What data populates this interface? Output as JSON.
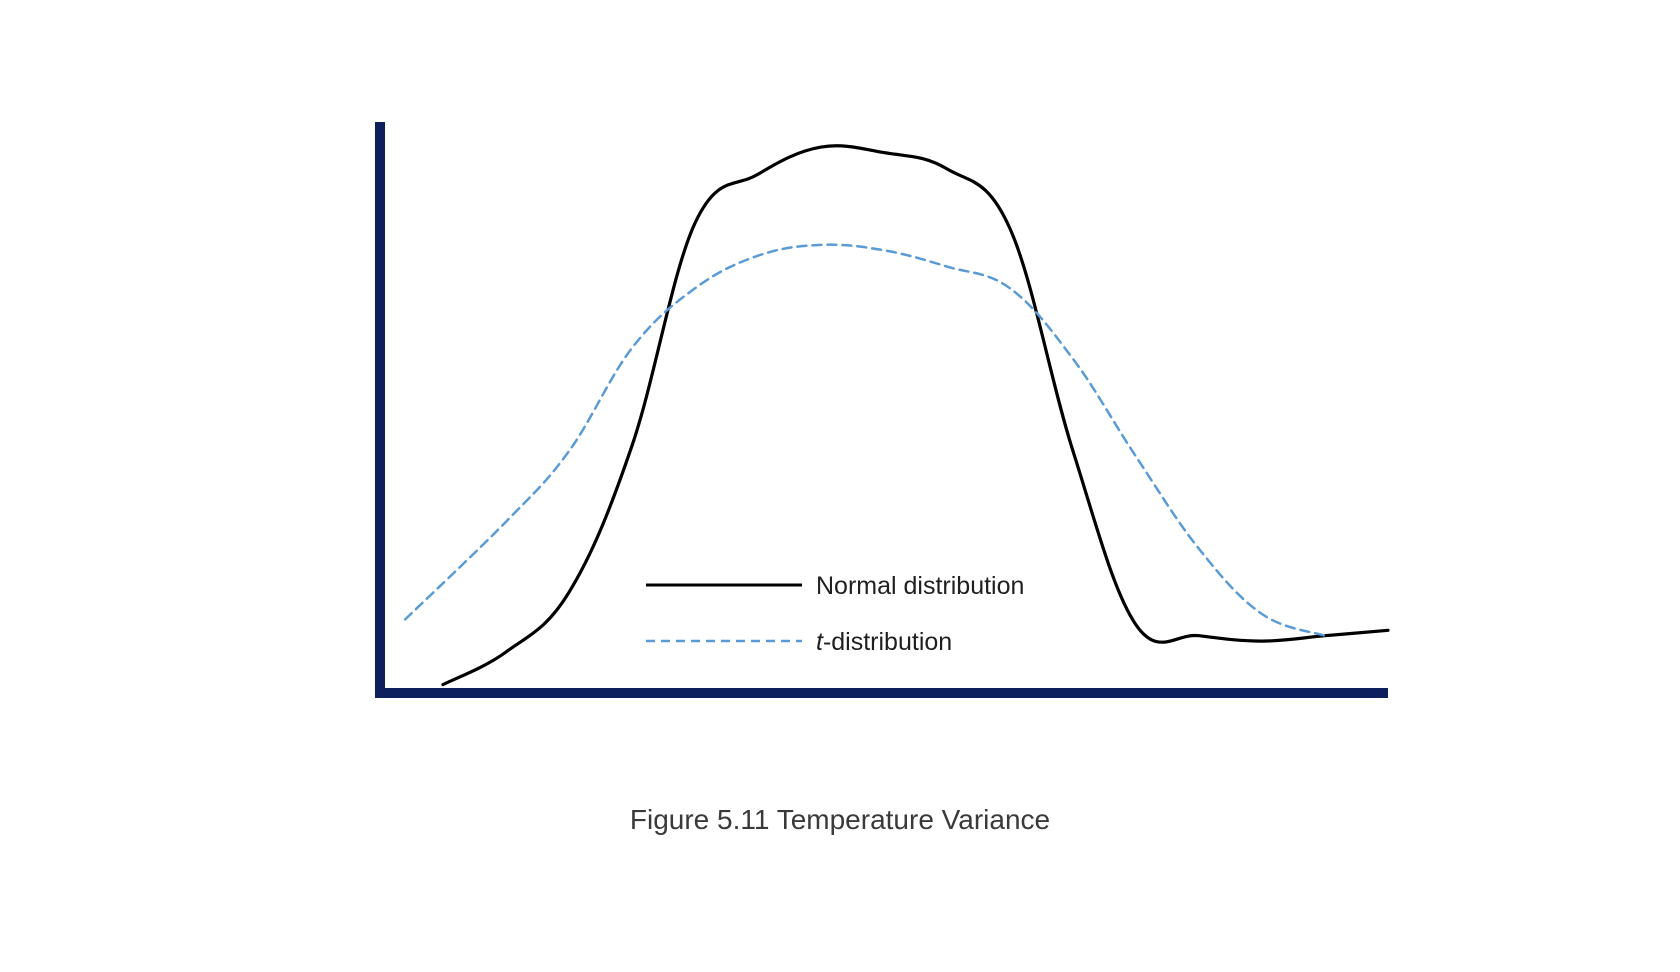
{
  "chart_data": {
    "type": "line",
    "caption": "Figure 5.11 Temperature Variance",
    "title": "",
    "xlabel": "",
    "ylabel": "",
    "xlim": [
      -4,
      4
    ],
    "ylim": [
      0,
      1.05
    ],
    "grid": false,
    "legend_position": "bottom-center",
    "series": [
      {
        "name": "Normal distribution",
        "style": "solid",
        "color": "#000000",
        "x": [
          -3.5,
          -3.0,
          -2.5,
          -2.0,
          -1.5,
          -1.0,
          -0.5,
          0.0,
          0.5,
          1.0,
          1.5,
          2.0,
          2.5,
          3.0,
          3.5,
          4.0
        ],
        "y": [
          0.01,
          0.07,
          0.18,
          0.45,
          0.86,
          0.95,
          1.0,
          0.99,
          0.96,
          0.85,
          0.44,
          0.12,
          0.1,
          0.09,
          0.1,
          0.11
        ]
      },
      {
        "name": "t-distribution",
        "style": "dashed",
        "color": "#5b9bd5",
        "x": [
          -3.8,
          -3.0,
          -2.5,
          -2.0,
          -1.5,
          -1.0,
          -0.5,
          0.0,
          0.5,
          1.0,
          1.5,
          2.0,
          2.5,
          3.0,
          3.5
        ],
        "y": [
          0.13,
          0.31,
          0.44,
          0.63,
          0.74,
          0.8,
          0.82,
          0.81,
          0.78,
          0.74,
          0.61,
          0.43,
          0.26,
          0.14,
          0.1
        ]
      }
    ],
    "colors": {
      "axis": "#0d1f5c"
    }
  }
}
